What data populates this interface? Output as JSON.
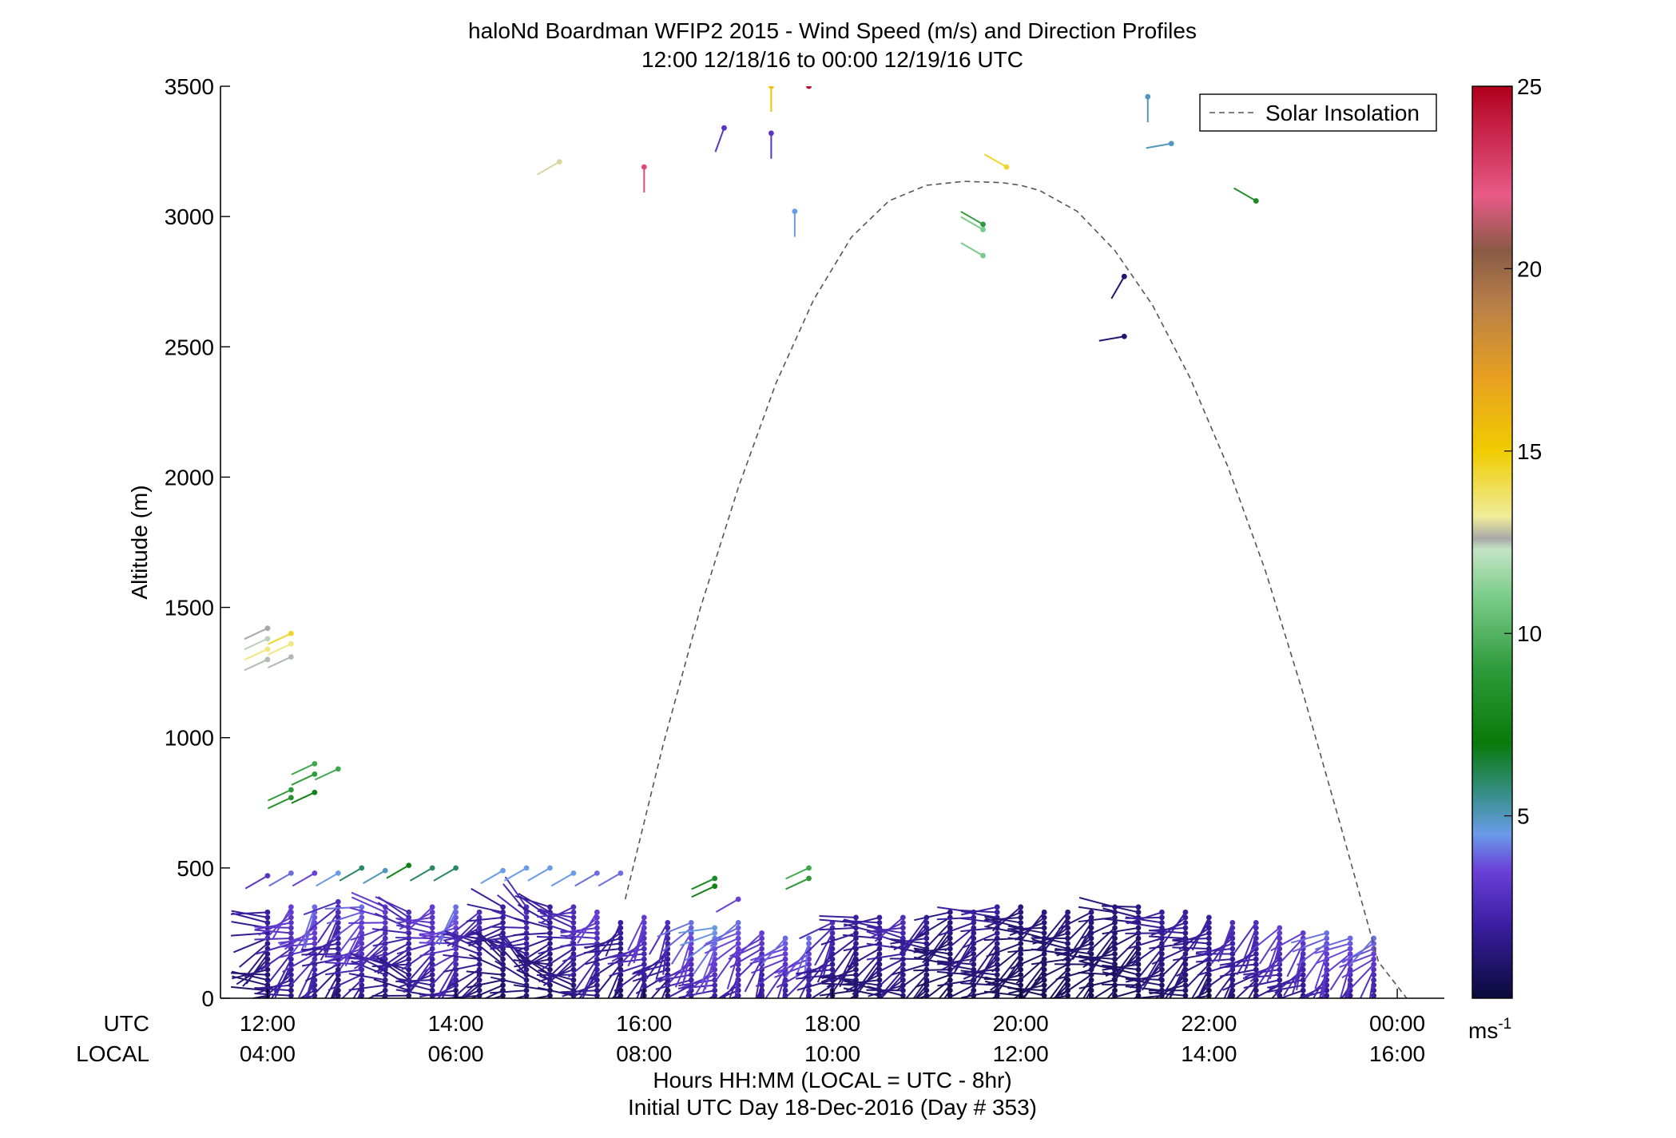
{
  "chart_data": {
    "type": "scatter",
    "title": "haloNd Boardman WFIP2 2015 - Wind Speed (m/s) and Direction Profiles",
    "subtitle": "12:00 12/18/16 to 00:00 12/19/16  UTC",
    "ylabel": "Altitude (m)",
    "xlabel": "Hours HH:MM  (LOCAL = UTC - 8hr)",
    "xlabel2": "Initial UTC Day 18-Dec-2016 (Day # 353)",
    "row_label_utc": "UTC",
    "row_label_local": "LOCAL",
    "xlim": [
      11.5,
      24.5
    ],
    "ylim": [
      0,
      3500
    ],
    "x_ticks": [
      12,
      14,
      16,
      18,
      20,
      22,
      24
    ],
    "x_tick_labels_utc": [
      "12:00",
      "14:00",
      "16:00",
      "18:00",
      "20:00",
      "22:00",
      "00:00"
    ],
    "x_tick_labels_local": [
      "04:00",
      "06:00",
      "08:00",
      "10:00",
      "12:00",
      "14:00",
      "16:00"
    ],
    "y_ticks": [
      0,
      500,
      1000,
      1500,
      2000,
      2500,
      3000,
      3500
    ],
    "y_tick_labels": [
      "0",
      "500",
      "1000",
      "1500",
      "2000",
      "2500",
      "3000",
      "3500"
    ],
    "grid": false,
    "legend": {
      "entries": [
        "Solar Insolation"
      ],
      "placement": "top-right"
    },
    "colorbar": {
      "unit_label": "ms",
      "unit_sup": "-1",
      "range": [
        0,
        25
      ],
      "ticks": [
        5,
        10,
        15,
        20,
        25
      ],
      "tick_labels": [
        "5",
        "10",
        "15",
        "20",
        "25"
      ],
      "stops": [
        {
          "v": 0,
          "c": "#0b0b3c"
        },
        {
          "v": 2,
          "c": "#3a1ea0"
        },
        {
          "v": 3.5,
          "c": "#6a40d8"
        },
        {
          "v": 4.5,
          "c": "#6a9be8"
        },
        {
          "v": 5.5,
          "c": "#3a9090"
        },
        {
          "v": 7,
          "c": "#0a7a0a"
        },
        {
          "v": 9,
          "c": "#2e9a3a"
        },
        {
          "v": 11,
          "c": "#7acc8a"
        },
        {
          "v": 12.3,
          "c": "#c4e4c4"
        },
        {
          "v": 12.6,
          "c": "#a8a8a8"
        },
        {
          "v": 13.2,
          "c": "#f0ec9a"
        },
        {
          "v": 15,
          "c": "#f0cc00"
        },
        {
          "v": 17,
          "c": "#e8a020"
        },
        {
          "v": 19,
          "c": "#b88048"
        },
        {
          "v": 20.5,
          "c": "#8a5a46"
        },
        {
          "v": 22,
          "c": "#e85a88"
        },
        {
          "v": 25,
          "c": "#b0001c"
        }
      ]
    },
    "solar_insolation": {
      "name": "Solar Insolation",
      "x": [
        15.8,
        16.2,
        16.6,
        17.0,
        17.4,
        17.8,
        18.2,
        18.6,
        19.0,
        19.4,
        19.8,
        20.0,
        20.2,
        20.6,
        21.0,
        21.4,
        21.8,
        22.2,
        22.6,
        23.0,
        23.4,
        23.8,
        24.1
      ],
      "y": [
        380,
        970,
        1500,
        1960,
        2360,
        2680,
        2920,
        3060,
        3120,
        3135,
        3130,
        3120,
        3100,
        3020,
        2870,
        2660,
        2380,
        2040,
        1640,
        1170,
        660,
        140,
        0
      ]
    },
    "barb_columns": {
      "description_note": "each column: time (UTC hours), speed (m/s), direction (deg), max altitude (m)",
      "time": [
        12.0,
        12.25,
        12.5,
        12.75,
        13.0,
        13.25,
        13.5,
        13.75,
        14.0,
        14.25,
        14.5,
        14.75,
        15.0,
        15.25,
        15.5,
        15.75,
        16.0,
        16.25,
        16.5,
        16.75,
        17.0,
        17.25,
        17.5,
        17.75,
        18.0,
        18.25,
        18.5,
        18.75,
        19.0,
        19.25,
        19.5,
        19.75,
        20.0,
        20.25,
        20.5,
        20.75,
        21.0,
        21.25,
        21.5,
        21.75,
        22.0,
        22.25,
        22.5,
        22.75,
        23.0,
        23.25,
        23.5,
        23.75
      ],
      "speed": [
        1.5,
        2.5,
        3.0,
        2.0,
        3.0,
        2.5,
        2.0,
        2.5,
        3.0,
        2.0,
        1.5,
        2.0,
        1.5,
        2.0,
        2.5,
        1.5,
        2.5,
        2.0,
        3.0,
        3.5,
        3.0,
        2.5,
        3.0,
        3.0,
        2.0,
        1.5,
        1.5,
        2.0,
        1.5,
        1.0,
        1.5,
        1.5,
        1.0,
        1.0,
        1.0,
        1.0,
        1.0,
        1.0,
        1.5,
        1.5,
        1.5,
        2.0,
        2.0,
        2.5,
        2.5,
        3.0,
        3.0,
        3.0
      ],
      "direction": [
        250,
        240,
        230,
        235,
        240,
        260,
        270,
        250,
        240,
        260,
        280,
        290,
        270,
        260,
        240,
        230,
        230,
        220,
        225,
        230,
        215,
        210,
        220,
        215,
        230,
        240,
        250,
        255,
        250,
        250,
        245,
        245,
        250,
        250,
        250,
        245,
        250,
        250,
        245,
        240,
        240,
        235,
        230,
        230,
        225,
        220,
        220,
        215
      ],
      "top": [
        340,
        350,
        360,
        370,
        360,
        350,
        340,
        360,
        350,
        340,
        350,
        360,
        360,
        350,
        330,
        300,
        310,
        300,
        290,
        280,
        290,
        250,
        240,
        230,
        300,
        310,
        320,
        310,
        320,
        330,
        330,
        350,
        360,
        340,
        340,
        330,
        350,
        360,
        340,
        330,
        320,
        300,
        290,
        270,
        260,
        250,
        240,
        230
      ]
    },
    "elevated_points": [
      {
        "t": 12.0,
        "alt": 1420,
        "s": 12.6,
        "d": 245
      },
      {
        "t": 12.0,
        "alt": 1380,
        "s": 12.4,
        "d": 245
      },
      {
        "t": 12.0,
        "alt": 1340,
        "s": 13.5,
        "d": 245
      },
      {
        "t": 12.0,
        "alt": 1300,
        "s": 12.5,
        "d": 245
      },
      {
        "t": 12.25,
        "alt": 1400,
        "s": 14.5,
        "d": 245
      },
      {
        "t": 12.25,
        "alt": 1360,
        "s": 13.5,
        "d": 245
      },
      {
        "t": 12.25,
        "alt": 1310,
        "s": 12.5,
        "d": 245
      },
      {
        "t": 12.25,
        "alt": 800,
        "s": 9.0,
        "d": 245
      },
      {
        "t": 12.25,
        "alt": 770,
        "s": 8.5,
        "d": 245
      },
      {
        "t": 12.5,
        "alt": 900,
        "s": 9.5,
        "d": 245
      },
      {
        "t": 12.5,
        "alt": 860,
        "s": 9.0,
        "d": 245
      },
      {
        "t": 12.5,
        "alt": 790,
        "s": 7.5,
        "d": 245
      },
      {
        "t": 12.75,
        "alt": 880,
        "s": 9.5,
        "d": 245
      },
      {
        "t": 12.0,
        "alt": 470,
        "s": 3.0,
        "d": 240
      },
      {
        "t": 12.25,
        "alt": 480,
        "s": 4.0,
        "d": 240
      },
      {
        "t": 12.5,
        "alt": 480,
        "s": 3.5,
        "d": 240
      },
      {
        "t": 12.75,
        "alt": 480,
        "s": 4.5,
        "d": 240
      },
      {
        "t": 13.0,
        "alt": 500,
        "s": 6.0,
        "d": 240
      },
      {
        "t": 13.25,
        "alt": 490,
        "s": 5.0,
        "d": 240
      },
      {
        "t": 13.5,
        "alt": 510,
        "s": 7.5,
        "d": 240
      },
      {
        "t": 13.75,
        "alt": 500,
        "s": 6.0,
        "d": 240
      },
      {
        "t": 14.0,
        "alt": 500,
        "s": 6.0,
        "d": 240
      },
      {
        "t": 14.5,
        "alt": 490,
        "s": 4.5,
        "d": 240
      },
      {
        "t": 14.75,
        "alt": 500,
        "s": 4.5,
        "d": 240
      },
      {
        "t": 15.0,
        "alt": 500,
        "s": 4.5,
        "d": 240
      },
      {
        "t": 15.25,
        "alt": 480,
        "s": 4.5,
        "d": 240
      },
      {
        "t": 15.5,
        "alt": 480,
        "s": 4.0,
        "d": 240
      },
      {
        "t": 15.75,
        "alt": 480,
        "s": 4.0,
        "d": 240
      },
      {
        "t": 16.75,
        "alt": 460,
        "s": 8.0,
        "d": 245
      },
      {
        "t": 16.75,
        "alt": 430,
        "s": 7.5,
        "d": 245
      },
      {
        "t": 17.0,
        "alt": 380,
        "s": 3.5,
        "d": 240
      },
      {
        "t": 17.75,
        "alt": 500,
        "s": 9.5,
        "d": 245
      },
      {
        "t": 17.75,
        "alt": 460,
        "s": 9.0,
        "d": 245
      },
      {
        "t": 15.1,
        "alt": 3210,
        "s": 13.0,
        "d": 240
      },
      {
        "t": 16.0,
        "alt": 3190,
        "s": 22.5,
        "d": 180
      },
      {
        "t": 16.85,
        "alt": 3340,
        "s": 3.0,
        "d": 200
      },
      {
        "t": 17.35,
        "alt": 3320,
        "s": 3.0,
        "d": 180
      },
      {
        "t": 17.35,
        "alt": 3500,
        "s": 15.5,
        "d": 180
      },
      {
        "t": 17.75,
        "alt": 3500,
        "s": 24.5,
        "d": 300
      },
      {
        "t": 17.6,
        "alt": 3020,
        "s": 4.5,
        "d": 180
      },
      {
        "t": 19.85,
        "alt": 3190,
        "s": 14.5,
        "d": 300
      },
      {
        "t": 19.6,
        "alt": 2970,
        "s": 9.0,
        "d": 300
      },
      {
        "t": 19.6,
        "alt": 2950,
        "s": 11.0,
        "d": 300
      },
      {
        "t": 19.6,
        "alt": 2850,
        "s": 11.0,
        "d": 300
      },
      {
        "t": 21.1,
        "alt": 2770,
        "s": 1.0,
        "d": 210
      },
      {
        "t": 21.1,
        "alt": 2540,
        "s": 1.0,
        "d": 260
      },
      {
        "t": 21.35,
        "alt": 3460,
        "s": 5.0,
        "d": 180
      },
      {
        "t": 21.6,
        "alt": 3280,
        "s": 5.0,
        "d": 260
      },
      {
        "t": 22.5,
        "alt": 3060,
        "s": 8.0,
        "d": 300
      }
    ]
  }
}
